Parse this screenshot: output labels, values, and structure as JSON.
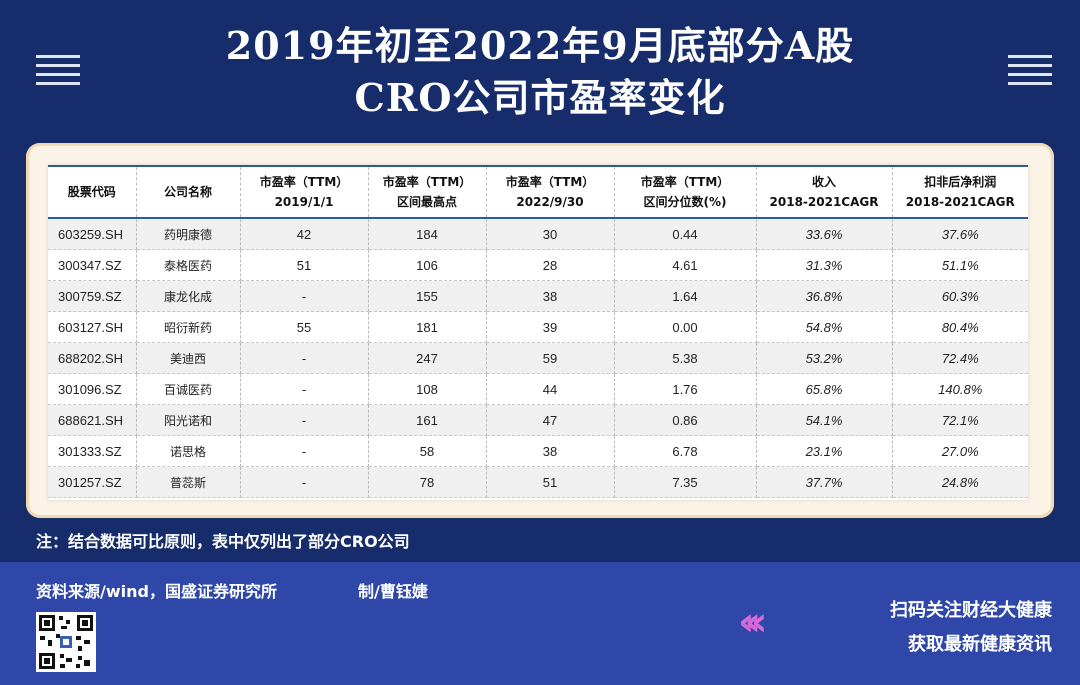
{
  "title_line1": "2019年初至2022年9月底部分A股",
  "title_line2": "CRO公司市盈率变化",
  "table": {
    "headers": [
      {
        "l1": "股票代码",
        "l2": ""
      },
      {
        "l1": "公司名称",
        "l2": ""
      },
      {
        "l1": "市盈率（TTM）",
        "l2": "2019/1/1"
      },
      {
        "l1": "市盈率（TTM）",
        "l2": "区间最高点"
      },
      {
        "l1": "市盈率（TTM）",
        "l2": "2022/9/30"
      },
      {
        "l1": "市盈率（TTM）",
        "l2": "区间分位数(%)"
      },
      {
        "l1": "收入",
        "l2": "2018-2021CAGR"
      },
      {
        "l1": "扣非后净利润",
        "l2": "2018-2021CAGR"
      }
    ],
    "rows": [
      {
        "code": "603259.SH",
        "name": "药明康德",
        "pe2019": "42",
        "high": "184",
        "pe2022": "30",
        "pct": "0.44",
        "rev": "33.6%",
        "np": "37.6%"
      },
      {
        "code": "300347.SZ",
        "name": "泰格医药",
        "pe2019": "51",
        "high": "106",
        "pe2022": "28",
        "pct": "4.61",
        "rev": "31.3%",
        "np": "51.1%"
      },
      {
        "code": "300759.SZ",
        "name": "康龙化成",
        "pe2019": "-",
        "high": "155",
        "pe2022": "38",
        "pct": "1.64",
        "rev": "36.8%",
        "np": "60.3%"
      },
      {
        "code": "603127.SH",
        "name": "昭衍新药",
        "pe2019": "55",
        "high": "181",
        "pe2022": "39",
        "pct": "0.00",
        "rev": "54.8%",
        "np": "80.4%"
      },
      {
        "code": "688202.SH",
        "name": "美迪西",
        "pe2019": "-",
        "high": "247",
        "pe2022": "59",
        "pct": "5.38",
        "rev": "53.2%",
        "np": "72.4%"
      },
      {
        "code": "301096.SZ",
        "name": "百诚医药",
        "pe2019": "-",
        "high": "108",
        "pe2022": "44",
        "pct": "1.76",
        "rev": "65.8%",
        "np": "140.8%"
      },
      {
        "code": "688621.SH",
        "name": "阳光诺和",
        "pe2019": "-",
        "high": "161",
        "pe2022": "47",
        "pct": "0.86",
        "rev": "54.1%",
        "np": "72.1%"
      },
      {
        "code": "301333.SZ",
        "name": "诺思格",
        "pe2019": "-",
        "high": "58",
        "pe2022": "38",
        "pct": "6.78",
        "rev": "23.1%",
        "np": "27.0%"
      },
      {
        "code": "301257.SZ",
        "name": "普蕊斯",
        "pe2019": "-",
        "high": "78",
        "pe2022": "51",
        "pct": "7.35",
        "rev": "37.7%",
        "np": "24.8%"
      }
    ]
  },
  "note": "注：结合数据可比原则，表中仅列出了部分CRO公司",
  "source": "资料来源/wind，国盛证券研究所",
  "maker": "制/曹钰婕",
  "promo_line1": "扫码关注财经大健康",
  "promo_line2": "获取最新健康资讯",
  "icons": [
    "menu-icon",
    "qr-code-icon",
    "chevrons-left-icon"
  ],
  "colors": {
    "background": "#172c6b",
    "footer": "#2e47a8",
    "card": "#fbf3e6",
    "header_rule": "#2b5aa3",
    "chevrons": "#d56ad9"
  }
}
